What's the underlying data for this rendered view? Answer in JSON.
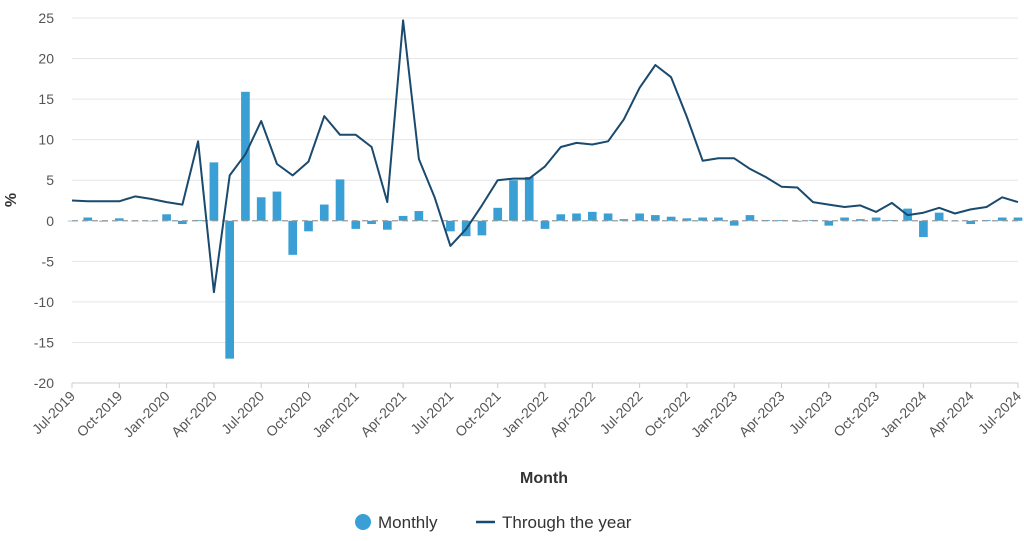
{
  "chart_data": {
    "type": "bar+line",
    "xlabel": "Month",
    "ylabel": "%",
    "ylim": [
      -20,
      25
    ],
    "yticks": [
      -20,
      -15,
      -10,
      -5,
      0,
      5,
      10,
      15,
      20,
      25
    ],
    "grid": true,
    "legend_position": "bottom-center",
    "x_tick_labels": [
      "Jul-2019",
      "Oct-2019",
      "Jan-2020",
      "Apr-2020",
      "Jul-2020",
      "Oct-2020",
      "Jan-2021",
      "Apr-2021",
      "Jul-2021",
      "Oct-2021",
      "Jan-2022",
      "Apr-2022",
      "Jul-2022",
      "Oct-2022",
      "Jan-2023",
      "Apr-2023",
      "Jul-2023",
      "Oct-2023",
      "Jan-2024",
      "Apr-2024",
      "Jul-2024"
    ],
    "months": [
      "Jul-2019",
      "Aug-2019",
      "Sep-2019",
      "Oct-2019",
      "Nov-2019",
      "Dec-2019",
      "Jan-2020",
      "Feb-2020",
      "Mar-2020",
      "Apr-2020",
      "May-2020",
      "Jun-2020",
      "Jul-2020",
      "Aug-2020",
      "Sep-2020",
      "Oct-2020",
      "Nov-2020",
      "Dec-2020",
      "Jan-2021",
      "Feb-2021",
      "Mar-2021",
      "Apr-2021",
      "May-2021",
      "Jun-2021",
      "Jul-2021",
      "Aug-2021",
      "Sep-2021",
      "Oct-2021",
      "Nov-2021",
      "Dec-2021",
      "Jan-2022",
      "Feb-2022",
      "Mar-2022",
      "Apr-2022",
      "May-2022",
      "Jun-2022",
      "Jul-2022",
      "Aug-2022",
      "Sep-2022",
      "Oct-2022",
      "Nov-2022",
      "Dec-2022",
      "Jan-2023",
      "Feb-2023",
      "Mar-2023",
      "Apr-2023",
      "May-2023",
      "Jun-2023",
      "Jul-2023",
      "Aug-2023",
      "Sep-2023",
      "Oct-2023",
      "Nov-2023",
      "Dec-2023",
      "Jan-2024",
      "Feb-2024",
      "Mar-2024",
      "Apr-2024",
      "May-2024",
      "Jun-2024",
      "Jul-2024"
    ],
    "series": [
      {
        "name": "Monthly",
        "type": "bar",
        "color": "#3a9fd5",
        "values": [
          0.0,
          0.4,
          -0.1,
          0.3,
          0.0,
          0.0,
          0.8,
          -0.4,
          0.1,
          7.2,
          -17.0,
          15.9,
          2.9,
          3.6,
          -4.2,
          -1.3,
          2.0,
          5.1,
          -1.0,
          -0.4,
          -1.1,
          0.6,
          1.2,
          0.0,
          -1.3,
          -1.9,
          -1.8,
          1.6,
          5.0,
          5.4,
          -1.0,
          0.8,
          0.9,
          1.1,
          0.9,
          0.2,
          0.9,
          0.7,
          0.5,
          0.3,
          0.4,
          0.4,
          -0.6,
          0.7,
          0.1,
          0.1,
          -0.1,
          0.1,
          -0.6,
          0.4,
          0.2,
          0.4,
          0.1,
          1.5,
          -2.0,
          1.0,
          0.0,
          -0.4,
          0.1,
          0.4,
          0.4
        ]
      },
      {
        "name": "Through the year",
        "type": "line",
        "color": "#1a4a6e",
        "values": [
          2.5,
          2.4,
          2.4,
          2.4,
          3.0,
          2.7,
          2.3,
          2.0,
          9.8,
          -8.8,
          5.6,
          8.2,
          12.3,
          7.0,
          5.6,
          7.3,
          12.9,
          10.6,
          10.6,
          9.1,
          2.3,
          24.7,
          7.6,
          2.9,
          -3.1,
          -1.0,
          1.9,
          5.0,
          5.2,
          5.2,
          6.7,
          9.1,
          9.6,
          9.4,
          9.8,
          12.5,
          16.4,
          19.2,
          17.7,
          12.8,
          7.4,
          7.7,
          7.7,
          6.4,
          5.4,
          4.2,
          4.1,
          2.3,
          2.0,
          1.7,
          1.9,
          1.1,
          2.2,
          0.7,
          1.0,
          1.6,
          0.9,
          1.4,
          1.7,
          2.9,
          2.3
        ]
      }
    ]
  }
}
